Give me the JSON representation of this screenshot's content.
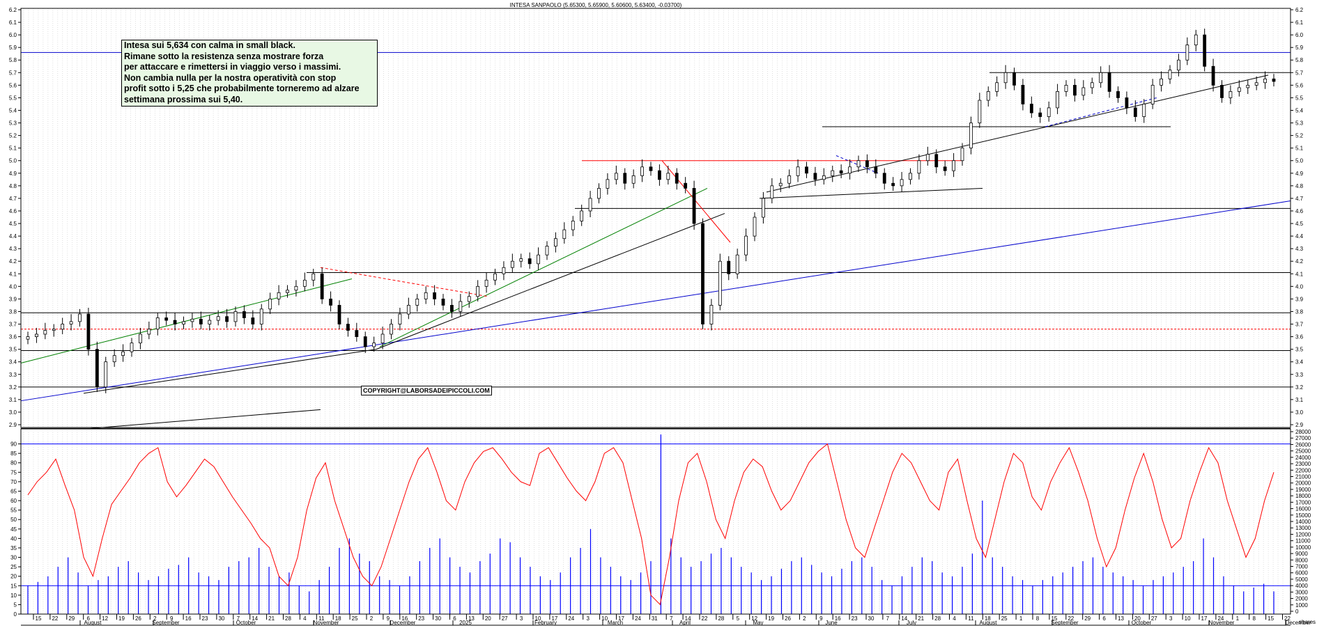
{
  "chart_title": "INTESA SANPAOLO (5.65300, 5.65900, 5.60600, 5.63400, -0.03700)",
  "annotation_lines": [
    "Intesa sui 5,634 con calma in small black.",
    "Rimane sotto la resistenza senza mostrare forza",
    "per attaccare e rimettersi in viaggio verso i massimi.",
    "Non cambia nulla per la nostra operatività con stop",
    "profit sotto i 5,25 che probabilmente torneremo ad alzare",
    "settimana prossima sui 5,40."
  ],
  "copyright": "COPYRIGHT@LABORSADEIPICCOLI.COM",
  "colors": {
    "candles": "#000000",
    "oscillator": "#ff0000",
    "volume": "#0000ff",
    "support": "#000000",
    "trend_blue": "#0000cc",
    "trend_green": "#008000",
    "trend_red": "#ff0000"
  },
  "chart_data": [
    {
      "type": "candlestick",
      "title": "INTESA SANPAOLO (5.65300, 5.65900, 5.60600, 5.63400, -0.03700)",
      "ylim": [
        2.9,
        6.2
      ],
      "y_ticks": [
        "6.2",
        "6.1",
        "6.0",
        "5.9",
        "5.8",
        "5.7",
        "5.6",
        "5.5",
        "5.4",
        "5.3",
        "5.2",
        "5.1",
        "5.0",
        "4.9",
        "4.8",
        "4.7",
        "4.6",
        "4.5",
        "4.4",
        "4.3",
        "4.2",
        "4.1",
        "4.0",
        "3.9",
        "3.8",
        "3.7",
        "3.6",
        "3.5",
        "3.4",
        "3.3",
        "3.2",
        "3.1",
        "3.0",
        "2.9"
      ],
      "horizontal_levels": [
        5.86,
        5.7,
        5.27,
        5.0,
        4.62,
        4.11,
        3.79,
        3.66,
        3.49,
        3.2,
        2.87
      ],
      "close_approx": [
        3.6,
        3.62,
        3.65,
        3.66,
        3.7,
        3.72,
        3.78,
        3.5,
        3.2,
        3.4,
        3.45,
        3.48,
        3.55,
        3.62,
        3.66,
        3.75,
        3.73,
        3.7,
        3.72,
        3.74,
        3.7,
        3.73,
        3.76,
        3.72,
        3.8,
        3.75,
        3.7,
        3.82,
        3.9,
        3.95,
        3.97,
        4.0,
        4.05,
        4.1,
        3.9,
        3.85,
        3.7,
        3.65,
        3.6,
        3.52,
        3.55,
        3.62,
        3.7,
        3.78,
        3.85,
        3.9,
        3.95,
        3.9,
        3.85,
        3.8,
        3.88,
        3.92,
        4.0,
        4.05,
        4.1,
        4.15,
        4.2,
        4.22,
        4.18,
        4.25,
        4.32,
        4.38,
        4.45,
        4.52,
        4.6,
        4.7,
        4.78,
        4.85,
        4.9,
        4.82,
        4.88,
        4.95,
        4.92,
        4.85,
        4.9,
        4.82,
        4.78,
        4.5,
        3.7,
        3.85,
        4.2,
        4.1,
        4.25,
        4.4,
        4.55,
        4.7,
        4.8,
        4.82,
        4.88,
        4.95,
        4.9,
        4.85,
        4.88,
        4.92,
        4.9,
        4.95,
        5.0,
        4.95,
        4.9,
        4.82,
        4.8,
        4.85,
        4.9,
        5.0,
        5.05,
        4.95,
        4.92,
        5.0,
        5.1,
        5.3,
        5.48,
        5.55,
        5.62,
        5.7,
        5.6,
        5.45,
        5.38,
        5.35,
        5.42,
        5.55,
        5.6,
        5.52,
        5.58,
        5.62,
        5.7,
        5.55,
        5.5,
        5.42,
        5.35,
        5.45,
        5.6,
        5.65,
        5.72,
        5.8,
        5.92,
        6.0,
        5.75,
        5.6,
        5.5,
        5.55,
        5.58,
        5.6,
        5.62,
        5.65,
        5.63
      ]
    },
    {
      "type": "line",
      "series": [
        {
          "name": "",
          "values": [
            63,
            70,
            75,
            82,
            68,
            55,
            30,
            20,
            40,
            58,
            65,
            72,
            80,
            85,
            88,
            70,
            62,
            68,
            75,
            82,
            78,
            70,
            62,
            55,
            48,
            40,
            35,
            20,
            15,
            30,
            55,
            72,
            80,
            60,
            45,
            30,
            20,
            15,
            25,
            40,
            55,
            70,
            82,
            88,
            75,
            60,
            55,
            70,
            80,
            86,
            88,
            82,
            75,
            70,
            68,
            85,
            88,
            80,
            72,
            65,
            60,
            70,
            85,
            88,
            80,
            60,
            40,
            10,
            5,
            30,
            60,
            80,
            85,
            70,
            50,
            40,
            60,
            75,
            82,
            78,
            65,
            55,
            60,
            70,
            80,
            86,
            90,
            70,
            50,
            35,
            30,
            45,
            60,
            75,
            85,
            80,
            70,
            60,
            55,
            75,
            82,
            60,
            40,
            30,
            50,
            70,
            85,
            80,
            62,
            55,
            70,
            80,
            88,
            75,
            60,
            40,
            25,
            35,
            55,
            72,
            85,
            70,
            50,
            35,
            40,
            60,
            75,
            88,
            80,
            60,
            45,
            30,
            40,
            60,
            75
          ]
        }
      ],
      "bars": [
        {
          "name": "",
          "values": [
            15,
            17,
            20,
            25,
            30,
            22,
            15,
            18,
            20,
            25,
            28,
            22,
            18,
            20,
            24,
            26,
            30,
            22,
            20,
            18,
            25,
            28,
            30,
            35,
            25,
            20,
            22,
            15,
            12,
            18,
            25,
            35,
            40,
            32,
            28,
            20,
            18,
            15,
            20,
            28,
            35,
            40,
            30,
            25,
            22,
            28,
            32,
            40,
            38,
            30,
            25,
            20,
            18,
            22,
            30,
            35,
            45,
            30,
            25,
            20,
            18,
            22,
            28,
            95,
            40,
            30,
            25,
            28,
            32,
            35,
            30,
            25,
            22,
            18,
            20,
            24,
            28,
            30,
            26,
            22,
            20,
            24,
            28,
            30,
            25,
            18,
            15,
            20,
            25,
            30,
            28,
            22,
            20,
            25,
            32,
            60,
            30,
            25,
            20,
            18,
            15,
            18,
            20,
            22,
            25,
            28,
            30,
            25,
            22,
            20,
            18,
            15,
            18,
            20,
            22,
            25,
            28,
            40,
            30,
            20,
            15,
            12,
            14,
            16,
            12
          ]
        }
      ],
      "y_ticks_left": [
        "90",
        "85",
        "80",
        "75",
        "70",
        "65",
        "60",
        "55",
        "50",
        "45",
        "40",
        "35",
        "30",
        "25",
        "20",
        "15",
        "10",
        "5",
        "0"
      ],
      "y_ticks_right": [
        "28000",
        "27000",
        "26000",
        "25000",
        "24000",
        "23000",
        "22000",
        "21000",
        "20000",
        "19000",
        "18000",
        "17000",
        "16000",
        "15000",
        "14000",
        "13000",
        "12000",
        "11000",
        "10000",
        "9000",
        "8000",
        "7000",
        "6000",
        "5000",
        "4000",
        "3000",
        "2000",
        "1000",
        "0"
      ],
      "ylim": [
        0,
        95
      ],
      "levels": [
        90,
        15
      ]
    }
  ],
  "x_axis": {
    "day_ticks": [
      "15",
      "22",
      "29",
      "6",
      "12",
      "19",
      "26",
      "2",
      "9",
      "16",
      "23",
      "30",
      "7",
      "14",
      "21",
      "28",
      "4",
      "11",
      "18",
      "25",
      "2",
      "9",
      "16",
      "23",
      "30",
      "6",
      "13",
      "20",
      "27",
      "3",
      "10",
      "17",
      "24",
      "3",
      "10",
      "17",
      "24",
      "31",
      "7",
      "14",
      "22",
      "28",
      "5",
      "12",
      "19",
      "26",
      "2",
      "9",
      "16",
      "23",
      "30",
      "7",
      "14",
      "21",
      "28",
      "4",
      "11",
      "18",
      "25",
      "1",
      "8",
      "15",
      "22",
      "29",
      "6",
      "13",
      "20",
      "27",
      "3",
      "10",
      "17",
      "24",
      "1",
      "8",
      "15",
      "22"
    ],
    "month_labels": [
      "August",
      "September",
      "October",
      "November",
      "December",
      "2025",
      "February",
      "March",
      "April",
      "May",
      "June",
      "July",
      "August",
      "September",
      "October",
      "November",
      "December"
    ],
    "corner_label": "shares"
  }
}
